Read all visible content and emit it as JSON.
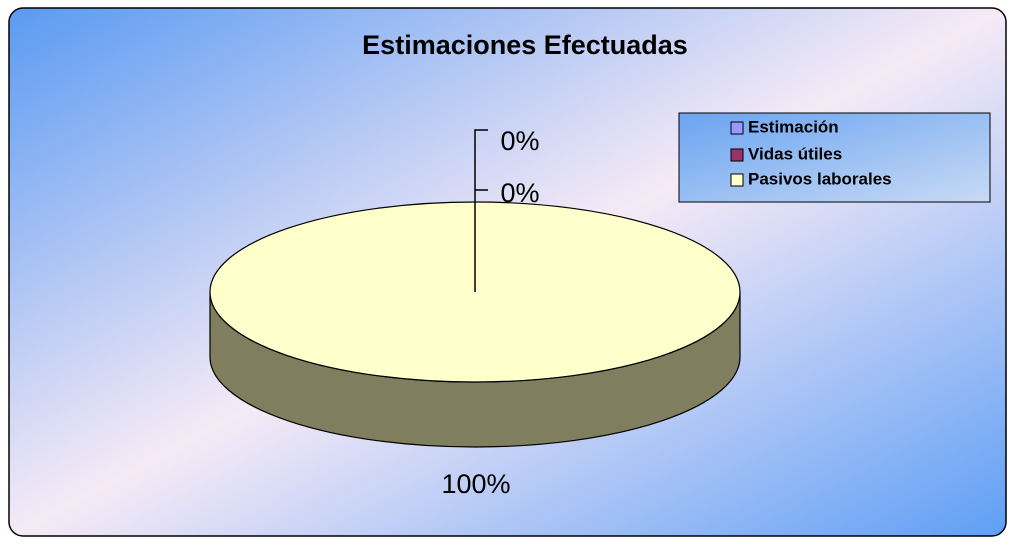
{
  "chart_data": {
    "type": "pie3d",
    "title": "Estimaciones Efectuadas",
    "categories": [
      "Estimación",
      "Vidas útiles",
      "Pasivos laborales"
    ],
    "values": [
      0,
      0,
      100
    ],
    "value_labels": [
      "0%",
      "0%",
      "100%"
    ],
    "colors": [
      "#9999ff",
      "#993366",
      "#ffffcc"
    ],
    "legend": "top-right"
  }
}
